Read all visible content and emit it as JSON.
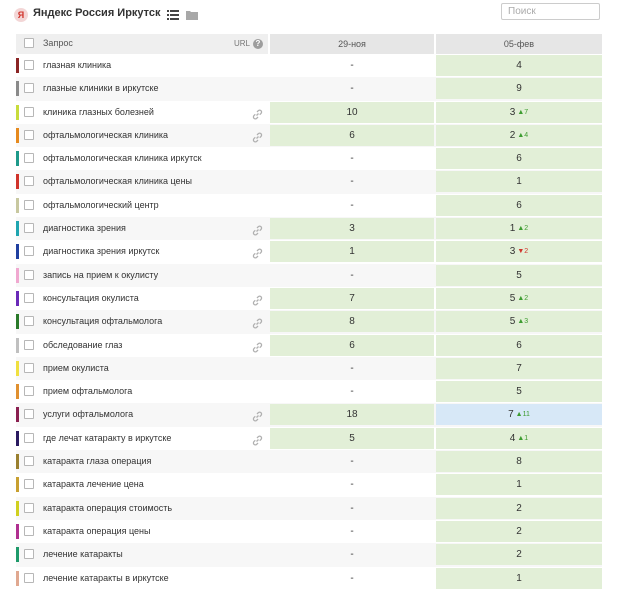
{
  "header": {
    "title": "Яндекс Россия Иркутск",
    "logo_text": "Я",
    "search_placeholder": "Поиск"
  },
  "table": {
    "col_query": "Запрос",
    "col_url": "URL",
    "help_symbol": "?",
    "dates": [
      "29-ноя",
      "05-фев"
    ],
    "rows": [
      {
        "color": "#8a2424",
        "query": "глазная клиника",
        "link": false,
        "d1": "-",
        "d2": "4",
        "dir": "",
        "ch": ""
      },
      {
        "color": "#8a8a8a",
        "query": "глазные клиники в иркутске",
        "link": false,
        "d1": "-",
        "d2": "9",
        "dir": "",
        "ch": ""
      },
      {
        "color": "#c8dc3c",
        "query": "клиника глазных болезней",
        "link": true,
        "d1": "10",
        "d2": "3",
        "dir": "up",
        "ch": "7"
      },
      {
        "color": "#e68a1e",
        "query": "офтальмологическая клиника",
        "link": true,
        "d1": "6",
        "d2": "2",
        "dir": "up",
        "ch": "4"
      },
      {
        "color": "#1e9a8a",
        "query": "офтальмологическая клиника иркутск",
        "link": false,
        "d1": "-",
        "d2": "6",
        "dir": "",
        "ch": ""
      },
      {
        "color": "#d0342c",
        "query": "офтальмологическая клиника цены",
        "link": false,
        "d1": "-",
        "d2": "1",
        "dir": "",
        "ch": ""
      },
      {
        "color": "#c8c8a0",
        "query": "офтальмологический центр",
        "link": false,
        "d1": "-",
        "d2": "6",
        "dir": "",
        "ch": ""
      },
      {
        "color": "#1fa5b0",
        "query": "диагностика зрения",
        "link": true,
        "d1": "3",
        "d2": "1",
        "dir": "up",
        "ch": "2"
      },
      {
        "color": "#2040a0",
        "query": "диагностика зрения иркутск",
        "link": true,
        "d1": "1",
        "d2": "3",
        "dir": "down",
        "ch": "2"
      },
      {
        "color": "#f0a8d0",
        "query": "запись на прием к окулисту",
        "link": false,
        "d1": "-",
        "d2": "5",
        "dir": "",
        "ch": ""
      },
      {
        "color": "#6a2ab8",
        "query": "консультация окулиста",
        "link": true,
        "d1": "7",
        "d2": "5",
        "dir": "up",
        "ch": "2"
      },
      {
        "color": "#2a7a2a",
        "query": "консультация офтальмолога",
        "link": true,
        "d1": "8",
        "d2": "5",
        "dir": "up",
        "ch": "3"
      },
      {
        "color": "#c0c0c0",
        "query": "обследование глаз",
        "link": true,
        "d1": "6",
        "d2": "6",
        "dir": "",
        "ch": ""
      },
      {
        "color": "#f0e040",
        "query": "прием окулиста",
        "link": false,
        "d1": "-",
        "d2": "7",
        "dir": "",
        "ch": ""
      },
      {
        "color": "#e09030",
        "query": "прием офтальмолога",
        "link": false,
        "d1": "-",
        "d2": "5",
        "dir": "",
        "ch": ""
      },
      {
        "color": "#8a2050",
        "query": "услуги офтальмолога",
        "link": true,
        "d1": "18",
        "d2": "7",
        "dir": "up",
        "ch": "11",
        "blue": true
      },
      {
        "color": "#2a1a60",
        "query": "где лечат катаракту в иркутске",
        "link": true,
        "d1": "5",
        "d2": "4",
        "dir": "up",
        "ch": "1"
      },
      {
        "color": "#9a8030",
        "query": "катаракта глаза операция",
        "link": false,
        "d1": "-",
        "d2": "8",
        "dir": "",
        "ch": ""
      },
      {
        "color": "#c8a030",
        "query": "катаракта лечение цена",
        "link": false,
        "d1": "-",
        "d2": "1",
        "dir": "",
        "ch": ""
      },
      {
        "color": "#d0d020",
        "query": "катаракта операция стоимость",
        "link": false,
        "d1": "-",
        "d2": "2",
        "dir": "",
        "ch": ""
      },
      {
        "color": "#b03090",
        "query": "катаракта операция цены",
        "link": false,
        "d1": "-",
        "d2": "2",
        "dir": "",
        "ch": ""
      },
      {
        "color": "#1e9a6a",
        "query": "лечение катаракты",
        "link": false,
        "d1": "-",
        "d2": "2",
        "dir": "",
        "ch": ""
      },
      {
        "color": "#e0a890",
        "query": "лечение катаракты в иркутске",
        "link": false,
        "d1": "-",
        "d2": "1",
        "dir": "",
        "ch": ""
      }
    ]
  }
}
